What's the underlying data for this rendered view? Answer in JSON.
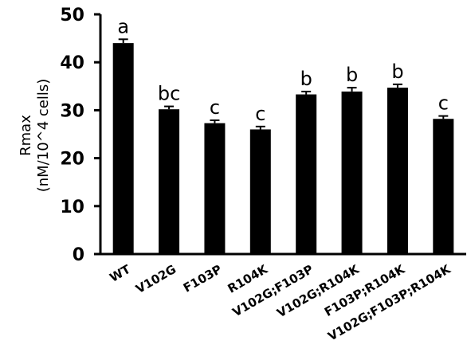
{
  "chart_data": {
    "type": "bar",
    "categories": [
      "WT",
      "V102G",
      "F103P",
      "R104K",
      "V102G;F103P",
      "V102G;R104K",
      "F103P;R104K",
      "V102G;F103P;R104K"
    ],
    "values": [
      44.0,
      30.2,
      27.3,
      26.0,
      33.3,
      33.9,
      34.7,
      28.2
    ],
    "errors": [
      0.8,
      0.6,
      0.6,
      0.6,
      0.6,
      0.8,
      0.7,
      0.6
    ],
    "group_labels": [
      "a",
      "bc",
      "c",
      "c",
      "b",
      "b",
      "b",
      "c"
    ],
    "ylabel": [
      "Rmax",
      "(nM/10^4 cells)"
    ],
    "xlabel": "",
    "title": "",
    "ylim": [
      0,
      50
    ],
    "yticks": [
      0,
      10,
      20,
      30,
      40,
      50
    ],
    "bar_color": "#000000",
    "grid": false
  }
}
